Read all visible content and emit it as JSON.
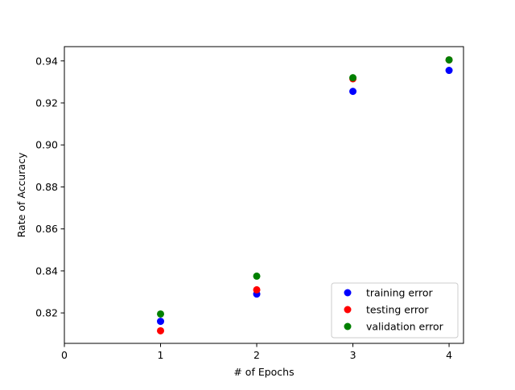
{
  "chart_data": {
    "type": "scatter",
    "xlabel": "# of Epochs",
    "ylabel": "Rate of Accuracy",
    "xlim": [
      0,
      4.15
    ],
    "ylim": [
      0.8055,
      0.9468
    ],
    "x_ticks": [
      0,
      1,
      2,
      3,
      4
    ],
    "y_ticks": [
      0.82,
      0.84,
      0.86,
      0.88,
      0.9,
      0.92,
      0.94
    ],
    "y_tick_labels": [
      "0.82",
      "0.84",
      "0.86",
      "0.88",
      "0.90",
      "0.92",
      "0.94"
    ],
    "grid": false,
    "legend_position": "lower-right",
    "series": [
      {
        "name": "training error",
        "color": "#0000ff",
        "x": [
          1,
          2,
          3,
          4
        ],
        "y": [
          0.816,
          0.829,
          0.9255,
          0.9355
        ]
      },
      {
        "name": "testing error",
        "color": "#ff0000",
        "x": [
          1,
          2,
          3,
          4
        ],
        "y": [
          0.8115,
          0.831,
          0.9315,
          0.9405
        ]
      },
      {
        "name": "validation error",
        "color": "#008000",
        "x": [
          1,
          2,
          3,
          4
        ],
        "y": [
          0.8195,
          0.8375,
          0.932,
          0.9405
        ]
      }
    ]
  }
}
